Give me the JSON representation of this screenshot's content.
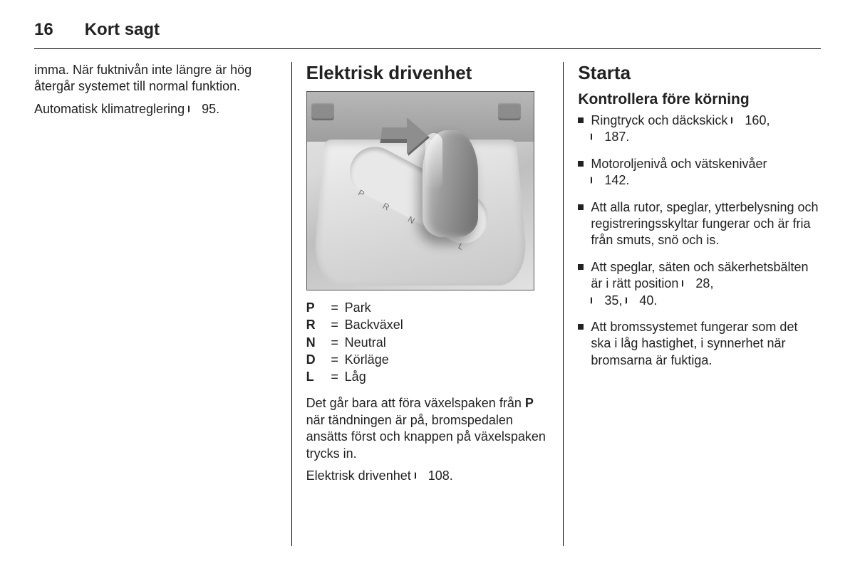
{
  "header": {
    "page_number": "16",
    "chapter_title": "Kort sagt"
  },
  "col1": {
    "para1": "imma. När fuktnivån inte längre är hög återgår systemet till normal funk­tion.",
    "para2_pre": "Automatisk klimatreglering ",
    "para2_ref": "95."
  },
  "col2": {
    "heading": "Elektrisk drivenhet",
    "gear_track_letters": "P R N D L",
    "gears": [
      {
        "key": "P",
        "val": "Park"
      },
      {
        "key": "R",
        "val": "Backväxel"
      },
      {
        "key": "N",
        "val": "Neutral"
      },
      {
        "key": "D",
        "val": "Körläge"
      },
      {
        "key": "L",
        "val": "Låg"
      }
    ],
    "para1_a": "Det går bara att föra växelspaken från ",
    "para1_bold": "P",
    "para1_b": " när tändningen är på, broms­pedalen ansätts först och knappen på växelspaken trycks in.",
    "para2_pre": "Elektrisk drivenhet ",
    "para2_ref": "108."
  },
  "col3": {
    "heading": "Starta",
    "subheading": "Kontrollera före körning",
    "items": {
      "i1_a": "Ringtryck och däckskick ",
      "i1_r1": "160,",
      "i1_r2": "187.",
      "i2_a": "Motoroljenivå och vätskenivåer ",
      "i2_r1": "142.",
      "i3": "Att alla rutor, speglar, ytterbelys­ning och registreringsskyltar fung­erar och är fria från smuts, snö och is.",
      "i4_a": "Att speglar, säten och säkerhets­bälten är i rätt position ",
      "i4_r1": "28,",
      "i4_r2": "35,",
      "i4_r3": "40.",
      "i5": "Att bromssystemet fungerar som det ska i låg hastighet, i synnerhet när bromsarna är fuktiga."
    }
  }
}
